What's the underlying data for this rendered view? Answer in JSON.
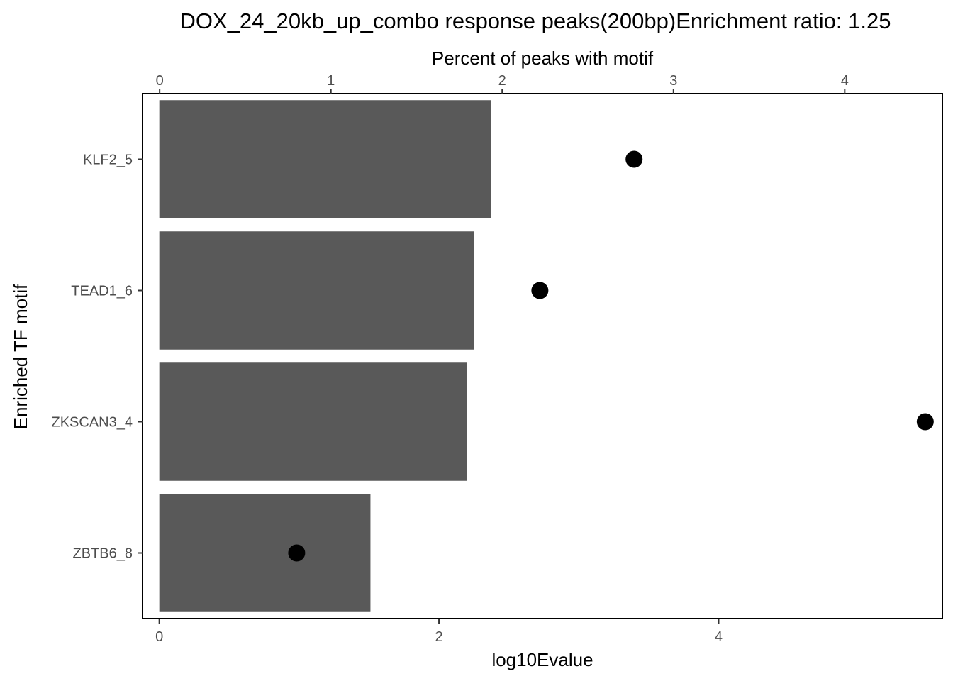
{
  "chart_data": {
    "type": "bar",
    "title": "DOX_24_20kb_up_combo response peaks(200bp)Enrichment ratio: 1.25",
    "xlabel": "log10Evalue",
    "ylabel": "Enriched TF motif",
    "secondary_xlabel": "Percent of peaks with motif",
    "categories": [
      "KLF2_5",
      "TEAD1_6",
      "ZKSCAN3_4",
      "ZBTB6_8"
    ],
    "orientation": "horizontal",
    "series": [
      {
        "values": [
          2.37,
          2.25,
          2.2,
          1.51
        ],
        "color": "#595959",
        "mark": "bar",
        "axis": "bottom"
      },
      {
        "values": [
          2.77,
          2.22,
          4.47,
          0.8
        ],
        "color": "#000000",
        "mark": "point",
        "axis": "top"
      }
    ],
    "xlim": [
      -0.12,
      5.6
    ],
    "xticks": [
      0,
      2,
      4
    ],
    "secondary_xlim": [
      -0.1,
      4.57
    ],
    "secondary_xticks": [
      0,
      1,
      2,
      3,
      4
    ],
    "grid": false,
    "legend": "none"
  }
}
